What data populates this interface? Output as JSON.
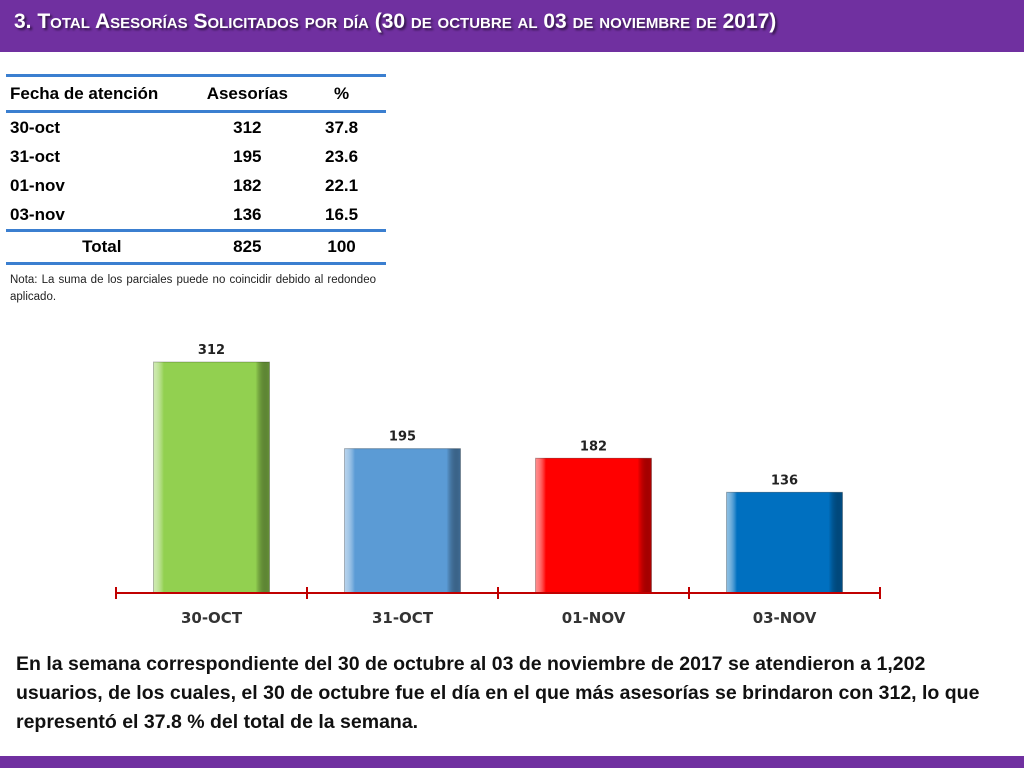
{
  "title": "3.  Total Asesorías Solicitados por día  (30 de octubre al 03 de noviembre de 2017)",
  "table": {
    "headers": [
      "Fecha de atención",
      "Asesorías",
      "%"
    ],
    "rows": [
      [
        "30-oct",
        "312",
        "37.8"
      ],
      [
        "31-oct",
        "195",
        "23.6"
      ],
      [
        "01-nov",
        "182",
        "22.1"
      ],
      [
        "03-nov",
        "136",
        "16.5"
      ]
    ],
    "total": [
      "Total",
      "825",
      "100"
    ]
  },
  "note": "Nota: La suma de los parciales puede no coincidir debido al redondeo aplicado.",
  "chart_data": {
    "type": "bar",
    "categories": [
      "30-OCT",
      "31-OCT",
      "01-NOV",
      "03-NOV"
    ],
    "values": [
      312,
      195,
      182,
      136
    ],
    "data_labels": [
      "312",
      "195",
      "182",
      "136"
    ],
    "colors": [
      "#92d050",
      "#5b9bd5",
      "#ff0000",
      "#0070c0"
    ],
    "title": "",
    "xlabel": "",
    "ylabel": "",
    "ylim": [
      0,
      312
    ],
    "grid": false,
    "legend": "none"
  },
  "summary": "En la semana correspondiente del 30 de octubre al 03 de noviembre de 2017 se atendieron a 1,202 usuarios, de los cuales, el 30 de octubre fue el día en el que más asesorías se brindaron con 312, lo que representó el 37.8 % del total de la semana.",
  "colors": {
    "accent": "#7030a0",
    "table_rule": "#3b7fd0",
    "axis": "#c00000"
  }
}
